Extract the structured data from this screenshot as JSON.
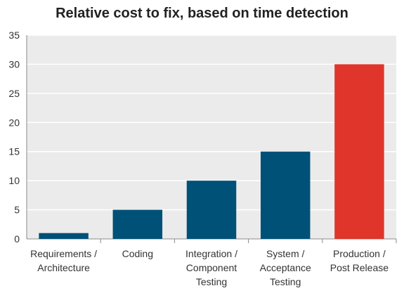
{
  "chart_data": {
    "type": "bar",
    "title": "Relative cost to fix, based on time detection",
    "categories": [
      [
        "Requirements /",
        "Architecture"
      ],
      [
        "Coding"
      ],
      [
        "Integration /",
        "Component",
        "Testing"
      ],
      [
        "System /",
        "Acceptance",
        "Testing"
      ],
      [
        "Production /",
        "Post Release"
      ]
    ],
    "values": [
      1,
      5,
      10,
      15,
      30
    ],
    "ylim": [
      0,
      35
    ],
    "yticks": [
      0,
      5,
      10,
      15,
      20,
      25,
      30,
      35
    ],
    "grid": true,
    "xlabel": "",
    "ylabel": "",
    "colors": {
      "default_bar": "#005178",
      "highlight_bar": "#E0352B",
      "plot_background": "#EBEBEB",
      "gridline": "#FFFFFF"
    },
    "highlight_index": 4
  }
}
